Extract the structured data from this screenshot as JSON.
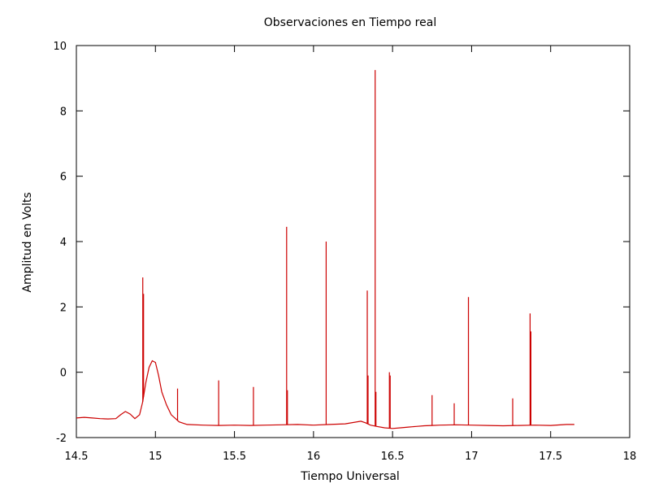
{
  "chart_data": {
    "type": "line",
    "title": "Observaciones en Tiempo real",
    "xlabel": "Tiempo Universal",
    "ylabel": "Amplitud en Volts",
    "xlim": [
      14.5,
      18
    ],
    "ylim": [
      -2,
      10
    ],
    "x_ticks": [
      "14.5",
      "15",
      "15.5",
      "16",
      "16.5",
      "17",
      "17.5",
      "18"
    ],
    "y_ticks": [
      "-2",
      "0",
      "2",
      "4",
      "6",
      "8",
      "10"
    ],
    "grid": false,
    "legend": "none",
    "series": [
      {
        "color": "#cc0000",
        "x": [
          14.5,
          14.55,
          14.6,
          14.65,
          14.7,
          14.75,
          14.78,
          14.81,
          14.84,
          14.87,
          14.9,
          14.92,
          14.94,
          14.96,
          14.98,
          15.0,
          15.02,
          15.04,
          15.07,
          15.1,
          15.15,
          15.2,
          15.3,
          15.4,
          15.5,
          15.6,
          15.7,
          15.8,
          15.9,
          16.0,
          16.1,
          16.2,
          16.3,
          16.33,
          16.36,
          16.4,
          16.45,
          16.5,
          16.55,
          16.6,
          16.65,
          16.7,
          16.75,
          16.8,
          16.9,
          17.0,
          17.1,
          17.2,
          17.3,
          17.4,
          17.5,
          17.6,
          17.65
        ],
        "y": [
          -1.4,
          -1.38,
          -1.4,
          -1.42,
          -1.43,
          -1.42,
          -1.3,
          -1.2,
          -1.28,
          -1.42,
          -1.3,
          -0.9,
          -0.3,
          0.15,
          0.35,
          0.3,
          -0.1,
          -0.6,
          -1.0,
          -1.3,
          -1.52,
          -1.6,
          -1.62,
          -1.63,
          -1.62,
          -1.63,
          -1.62,
          -1.61,
          -1.6,
          -1.62,
          -1.6,
          -1.58,
          -1.5,
          -1.55,
          -1.62,
          -1.66,
          -1.7,
          -1.72,
          -1.7,
          -1.68,
          -1.66,
          -1.64,
          -1.63,
          -1.62,
          -1.61,
          -1.62,
          -1.63,
          -1.64,
          -1.63,
          -1.62,
          -1.63,
          -1.6,
          -1.6
        ]
      }
    ],
    "spikes": [
      {
        "x": 14.92,
        "y": 2.9
      },
      {
        "x": 14.925,
        "y": 2.4
      },
      {
        "x": 15.14,
        "y": -0.5
      },
      {
        "x": 15.4,
        "y": -0.25
      },
      {
        "x": 15.62,
        "y": -0.45
      },
      {
        "x": 15.83,
        "y": 4.45
      },
      {
        "x": 15.835,
        "y": -0.55
      },
      {
        "x": 16.08,
        "y": 4.0
      },
      {
        "x": 16.34,
        "y": 2.5
      },
      {
        "x": 16.345,
        "y": -0.1
      },
      {
        "x": 16.39,
        "y": 9.25
      },
      {
        "x": 16.395,
        "y": -0.6
      },
      {
        "x": 16.48,
        "y": 0.0
      },
      {
        "x": 16.485,
        "y": -0.1
      },
      {
        "x": 16.75,
        "y": -0.7
      },
      {
        "x": 16.89,
        "y": -0.95
      },
      {
        "x": 16.98,
        "y": 2.3
      },
      {
        "x": 17.26,
        "y": -0.8
      },
      {
        "x": 17.37,
        "y": 1.8
      },
      {
        "x": 17.375,
        "y": 1.25
      }
    ]
  }
}
